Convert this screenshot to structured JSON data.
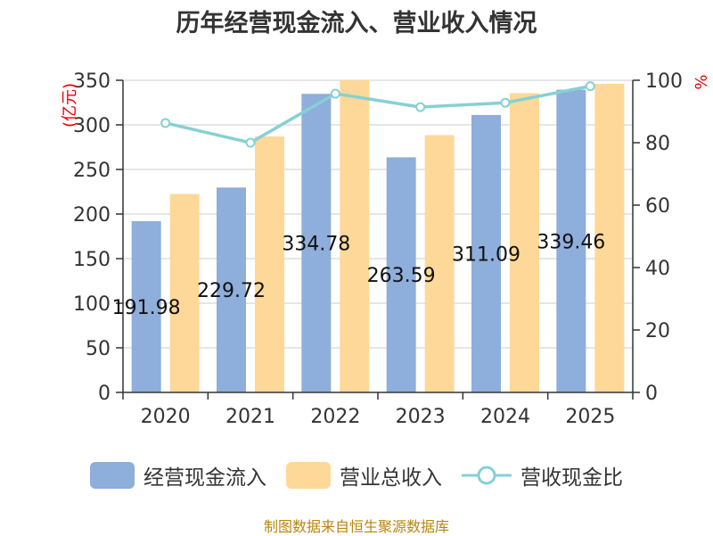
{
  "title": "历年经营现金流入、营业收入情况",
  "source": "制图数据来自恒生聚源数据库",
  "chart_data": {
    "type": "bar",
    "categories": [
      "2020",
      "2021",
      "2022",
      "2023",
      "2024",
      "2025"
    ],
    "series": [
      {
        "name": "经营现金流入",
        "type": "bar",
        "axis": "left",
        "color": "#8eaedb",
        "values": [
          191.98,
          229.72,
          334.78,
          263.59,
          311.09,
          339.46
        ],
        "labels": [
          "191.98",
          "229.72",
          "334.78",
          "263.59",
          "311.09",
          "339.46"
        ]
      },
      {
        "name": "营业总收入",
        "type": "bar",
        "axis": "left",
        "color": "#fed898",
        "values": [
          222.5,
          287.0,
          350.0,
          288.5,
          335.5,
          346.0
        ]
      },
      {
        "name": "营收现金比",
        "type": "line",
        "axis": "right",
        "color": "#86d0d4",
        "values": [
          86.3,
          80.0,
          95.7,
          91.4,
          92.8,
          98.1
        ]
      }
    ],
    "y_left": {
      "unit": "(亿元)",
      "min": 0,
      "max": 350,
      "ticks": [
        0,
        50,
        100,
        150,
        200,
        250,
        300,
        350
      ]
    },
    "y_right": {
      "unit": "%",
      "min": 0,
      "max": 100,
      "ticks": [
        0,
        20,
        40,
        60,
        80,
        100
      ]
    },
    "grid": true,
    "legend_position": "bottom"
  }
}
